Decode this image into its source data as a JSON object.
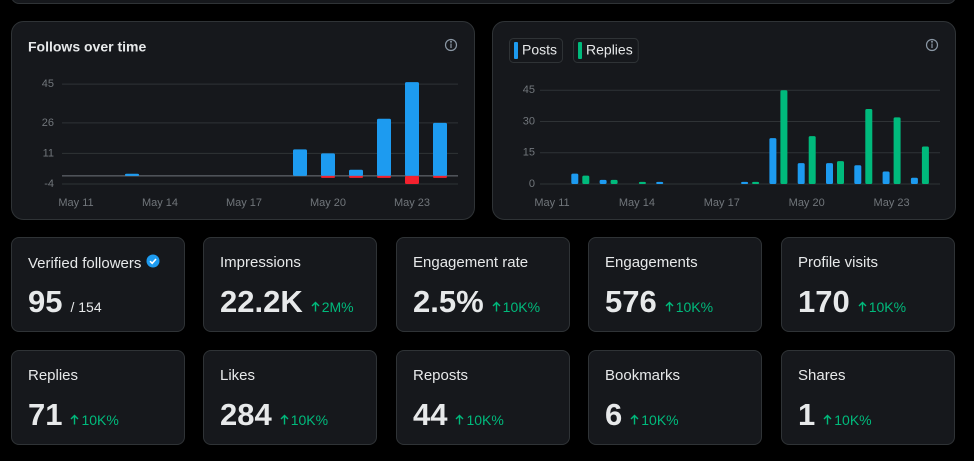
{
  "chart_data": [
    {
      "type": "bar",
      "stacked": true,
      "title": "Follows over time",
      "categories": [
        "May 11",
        null,
        null,
        "May 14",
        null,
        null,
        "May 17",
        null,
        null,
        "May 20",
        null,
        null,
        "May 23",
        null
      ],
      "series": [
        {
          "color": "#1d9bf0",
          "values": [
            0,
            0,
            1,
            0,
            0,
            0,
            0,
            0,
            13,
            11,
            3,
            28,
            46,
            26
          ]
        },
        {
          "color": "#f4212e",
          "values": [
            0,
            0,
            0,
            0,
            0,
            0,
            0,
            0,
            0,
            -1,
            -1,
            -1,
            -4,
            -1
          ]
        }
      ],
      "ylim": [
        -4,
        48
      ],
      "yticks": [
        -4,
        11,
        26,
        45
      ],
      "grid": true
    },
    {
      "type": "bar",
      "stacked": false,
      "legend": "top-left",
      "categories": [
        "May 11",
        null,
        null,
        "May 14",
        null,
        null,
        "May 17",
        null,
        null,
        "May 20",
        null,
        null,
        "May 23",
        null
      ],
      "series": [
        {
          "name": "Posts",
          "color": "#1d9bf0",
          "values": [
            0,
            5,
            2,
            0,
            1,
            0,
            0,
            1,
            22,
            10,
            10,
            9,
            6,
            3
          ]
        },
        {
          "name": "Replies",
          "color": "#00ba7c",
          "values": [
            0,
            4,
            2,
            1,
            0,
            0,
            0,
            1,
            45,
            23,
            11,
            36,
            32,
            18
          ]
        }
      ],
      "ylim": [
        0,
        48
      ],
      "yticks": [
        0,
        15,
        30,
        45
      ],
      "grid": true
    }
  ],
  "cards": [
    {
      "label": "Verified followers",
      "value": "95",
      "total": "/ 154"
    },
    {
      "label": "Impressions",
      "value": "22.2K",
      "change": "2M%"
    },
    {
      "label": "Engagement rate",
      "value": "2.5%",
      "change": "10K%"
    },
    {
      "label": "Engagements",
      "value": "576",
      "change": "10K%"
    },
    {
      "label": "Profile visits",
      "value": "170",
      "change": "10K%"
    },
    {
      "label": "Replies",
      "value": "71",
      "change": "10K%"
    },
    {
      "label": "Likes",
      "value": "284",
      "change": "10K%"
    },
    {
      "label": "Reposts",
      "value": "44",
      "change": "10K%"
    },
    {
      "label": "Bookmarks",
      "value": "6",
      "change": "10K%"
    },
    {
      "label": "Shares",
      "value": "1",
      "change": "10K%"
    }
  ]
}
